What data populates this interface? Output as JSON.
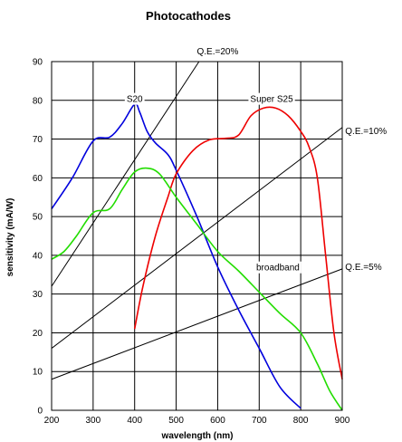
{
  "chart_data": {
    "type": "line",
    "title": "Photocathodes",
    "xlabel": "wavelength (nm)",
    "ylabel": "sensitivity (mA/W)",
    "xlim": [
      200,
      900
    ],
    "ylim": [
      0,
      90
    ],
    "xticks": [
      200,
      300,
      400,
      500,
      600,
      700,
      800,
      900
    ],
    "yticks": [
      0,
      10,
      20,
      30,
      40,
      50,
      60,
      70,
      80,
      90
    ],
    "grid": true,
    "legend": "none",
    "series": [
      {
        "name": "S20",
        "color": "#0000dd",
        "points": [
          [
            200,
            52
          ],
          [
            250,
            60
          ],
          [
            300,
            69.5
          ],
          [
            340,
            70.5
          ],
          [
            370,
            74
          ],
          [
            400,
            79
          ],
          [
            412,
            77
          ],
          [
            430,
            72
          ],
          [
            450,
            69
          ],
          [
            480,
            66
          ],
          [
            500,
            62
          ],
          [
            550,
            50
          ],
          [
            600,
            37
          ],
          [
            650,
            26
          ],
          [
            700,
            16
          ],
          [
            750,
            6
          ],
          [
            800,
            0.5
          ]
        ]
      },
      {
        "name": "Super S25",
        "color": "#ee0000",
        "points": [
          [
            400,
            21
          ],
          [
            420,
            32
          ],
          [
            450,
            45
          ],
          [
            480,
            55
          ],
          [
            500,
            61
          ],
          [
            540,
            67
          ],
          [
            580,
            69.8
          ],
          [
            620,
            70.2
          ],
          [
            650,
            71
          ],
          [
            680,
            76
          ],
          [
            710,
            78
          ],
          [
            740,
            78
          ],
          [
            770,
            76
          ],
          [
            800,
            72
          ],
          [
            820,
            68
          ],
          [
            840,
            60
          ],
          [
            860,
            40
          ],
          [
            880,
            20
          ],
          [
            900,
            8
          ]
        ]
      },
      {
        "name": "broadband",
        "color": "#22dd00",
        "points": [
          [
            200,
            39
          ],
          [
            230,
            41
          ],
          [
            260,
            45
          ],
          [
            300,
            51
          ],
          [
            340,
            52
          ],
          [
            370,
            57
          ],
          [
            400,
            61.5
          ],
          [
            430,
            62.5
          ],
          [
            460,
            61
          ],
          [
            500,
            55
          ],
          [
            550,
            48
          ],
          [
            600,
            41
          ],
          [
            650,
            36
          ],
          [
            700,
            30.5
          ],
          [
            750,
            25
          ],
          [
            800,
            20
          ],
          [
            840,
            12
          ],
          [
            870,
            5
          ],
          [
            900,
            0
          ]
        ]
      }
    ],
    "reference_lines": [
      {
        "label": "Q.E.=20%",
        "points": [
          [
            200,
            32
          ],
          [
            555,
            90
          ]
        ]
      },
      {
        "label": "Q.E.=10%",
        "points": [
          [
            200,
            16
          ],
          [
            900,
            73
          ]
        ]
      },
      {
        "label": "Q.E.=5%",
        "points": [
          [
            200,
            8
          ],
          [
            900,
            36.5
          ]
        ]
      }
    ],
    "annotations": [
      {
        "text": "S20",
        "x": 400,
        "y": 80.5
      },
      {
        "text": "Super S25",
        "x": 730,
        "y": 80.5
      },
      {
        "text": "broadband",
        "x": 745,
        "y": 37
      },
      {
        "text": "Q.E.=20%",
        "x": 600,
        "y": 92.8
      },
      {
        "text": "Q.E.=10%",
        "x": 905,
        "y": 72.2
      },
      {
        "text": "Q.E.=5%",
        "x": 905,
        "y": 37.2
      }
    ]
  }
}
